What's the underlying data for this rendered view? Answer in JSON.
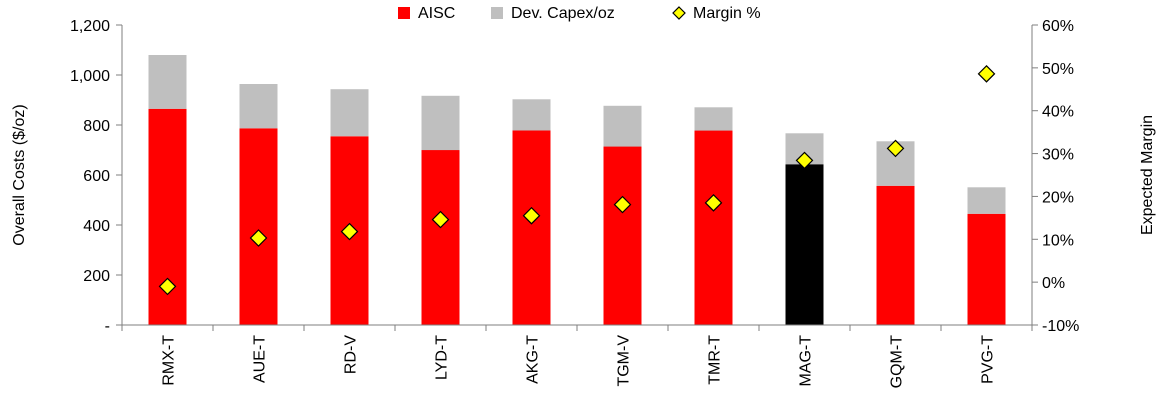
{
  "chart_data": {
    "type": "bar",
    "stacked": true,
    "categories": [
      "RMX-T",
      "AUE-T",
      "RD-V",
      "LYD-T",
      "AKG-T",
      "TGM-V",
      "TMR-T",
      "MAG-T",
      "GQM-T",
      "PVG-T"
    ],
    "series": [
      {
        "name": "AISC",
        "kind": "bar",
        "axis": "left",
        "color": "#ff0000",
        "values": [
          865,
          787,
          755,
          700,
          778,
          714,
          778,
          643,
          557,
          445
        ],
        "point_colors": {
          "7": "#000000"
        }
      },
      {
        "name": "Dev. Capex/oz",
        "kind": "bar",
        "axis": "left",
        "color": "#bfbfbf",
        "values": [
          215,
          177,
          188,
          217,
          125,
          163,
          93,
          124,
          178,
          106
        ]
      },
      {
        "name": "Margin %",
        "kind": "marker",
        "axis": "right",
        "color": "#ffff00",
        "marker": "diamond",
        "values": [
          -0.01,
          0.103,
          0.118,
          0.146,
          0.155,
          0.181,
          0.185,
          0.284,
          0.312,
          0.486
        ]
      }
    ],
    "left_axis": {
      "title": "Overall Costs ($/oz)",
      "range": [
        0,
        1200
      ],
      "ticks": [
        0,
        200,
        400,
        600,
        800,
        1000,
        1200
      ],
      "tick_labels": [
        "-",
        "200",
        "400",
        "600",
        "800",
        "1,000",
        "1,200"
      ]
    },
    "right_axis": {
      "title": "Expected Margin",
      "range": [
        -0.1,
        0.6
      ],
      "ticks": [
        -0.1,
        0,
        0.1,
        0.2,
        0.3,
        0.4,
        0.5,
        0.6
      ],
      "tick_labels": [
        "-10%",
        "0%",
        "10%",
        "20%",
        "30%",
        "40%",
        "50%",
        "60%"
      ]
    },
    "legend": {
      "position": "top",
      "items": [
        {
          "label": "AISC",
          "swatch": "square",
          "color": "#ff0000"
        },
        {
          "label": "Dev. Capex/oz",
          "swatch": "square",
          "color": "#bfbfbf"
        },
        {
          "label": "Margin %",
          "swatch": "diamond",
          "color": "#ffff00"
        }
      ]
    },
    "grid": false
  }
}
